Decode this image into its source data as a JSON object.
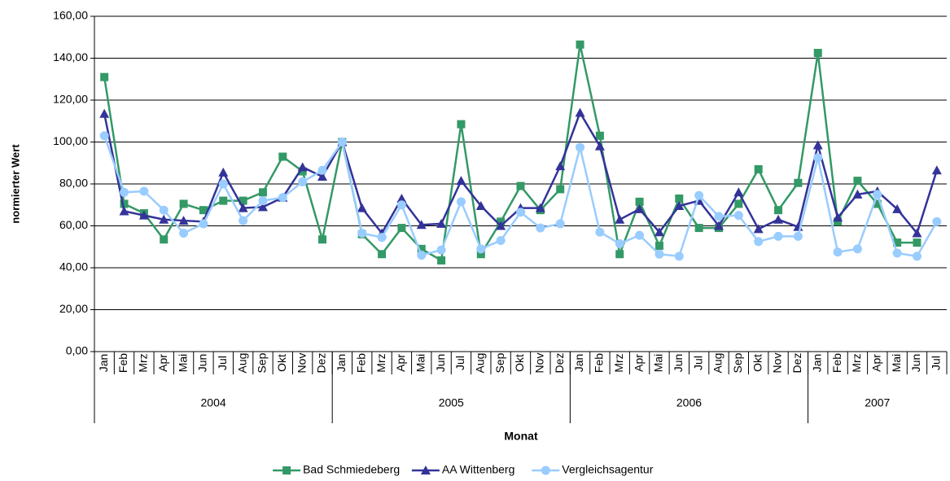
{
  "chart_data": {
    "type": "line",
    "x_label": "Monat",
    "y_label": "normierter Wert",
    "categories": [
      "Jan",
      "Feb",
      "Mrz",
      "Apr",
      "Mai",
      "Jun",
      "Jul",
      "Aug",
      "Sep",
      "Okt",
      "Nov",
      "Dez",
      "Jan",
      "Feb",
      "Mrz",
      "Apr",
      "Mai",
      "Jun",
      "Jul",
      "Aug",
      "Sep",
      "Okt",
      "Nov",
      "Dez",
      "Jan",
      "Feb",
      "Mrz",
      "Apr",
      "Mai",
      "Jun",
      "Jul",
      "Aug",
      "Sep",
      "Okt",
      "Nov",
      "Dez",
      "Jan",
      "Feb",
      "Mrz",
      "Apr",
      "Mai",
      "Jun",
      "Jul"
    ],
    "groups": [
      "2004",
      "2005",
      "2006",
      "2007"
    ],
    "ylim": [
      0,
      160
    ],
    "yticks": [
      {
        "value": 0,
        "label": "0,00"
      },
      {
        "value": 20,
        "label": "20,00"
      },
      {
        "value": 40,
        "label": "40,00"
      },
      {
        "value": 60,
        "label": "60,00"
      },
      {
        "value": 80,
        "label": "80,00"
      },
      {
        "value": 100,
        "label": "100,00"
      },
      {
        "value": 120,
        "label": "120,00"
      },
      {
        "value": 140,
        "label": "140,00"
      },
      {
        "value": 160,
        "label": "160,00"
      }
    ],
    "grid": true,
    "legend": "bottom",
    "series": [
      {
        "name": "Bad Schmiedeberg",
        "color": "#339966",
        "marker": "square",
        "values": [
          131,
          70.5,
          66,
          53.5,
          70.5,
          67.5,
          72,
          72,
          76,
          93,
          86,
          53.5,
          100,
          56,
          46.5,
          59,
          49,
          43.5,
          108.5,
          46.5,
          62,
          79,
          67.5,
          77.5,
          146.5,
          103,
          46.5,
          71.5,
          50.5,
          73,
          59,
          59,
          70.5,
          87,
          67.5,
          80.5,
          142.5,
          62,
          81.5,
          70.5,
          52,
          52,
          null
        ]
      },
      {
        "name": "AA Wittenberg",
        "color": "#333399",
        "marker": "triangle",
        "values": [
          113.5,
          67,
          65,
          63,
          62.5,
          62,
          85.5,
          68.5,
          69,
          73.5,
          88,
          83.5,
          100,
          68.5,
          56.5,
          73,
          60.5,
          61,
          81.5,
          69.5,
          60,
          68.5,
          68.5,
          88.5,
          114,
          98,
          63,
          68,
          57,
          69.5,
          72,
          60,
          76,
          58.5,
          63,
          59.5,
          98.5,
          64,
          75,
          76.5,
          68,
          56.5,
          86.5
        ]
      },
      {
        "name": "Vergleichsagentur",
        "color": "#99ccff",
        "marker": "circle",
        "values": [
          103,
          76,
          76.5,
          67.5,
          56.5,
          61,
          80,
          62.5,
          72,
          73.5,
          81,
          86.5,
          100,
          56.5,
          54.5,
          70,
          46,
          48.5,
          71.5,
          49,
          53,
          66.5,
          59,
          61,
          97.5,
          57,
          51.5,
          55.5,
          46.5,
          45.5,
          74.5,
          64.5,
          65,
          52.5,
          55,
          55,
          92.5,
          47.5,
          49,
          75,
          47,
          45.5,
          62
        ]
      }
    ]
  }
}
